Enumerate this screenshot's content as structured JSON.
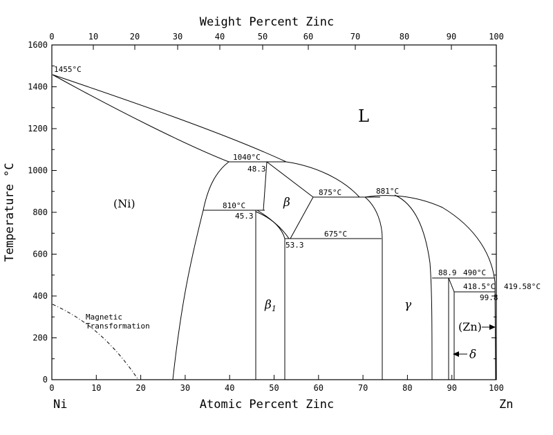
{
  "title_top": "Weight Percent Zinc",
  "title_bottom": "Atomic Percent Zinc",
  "ylabel": "Temperature °C",
  "left_element": "Ni",
  "right_element": "Zn",
  "y_ticks": [
    "0",
    "200",
    "400",
    "600",
    "800",
    "1000",
    "1200",
    "1400",
    "1600"
  ],
  "x_bottom_ticks": [
    "0",
    "10",
    "20",
    "30",
    "40",
    "50",
    "60",
    "70",
    "80",
    "90",
    "100"
  ],
  "x_top_ticks": [
    "0",
    "10",
    "20",
    "30",
    "40",
    "50",
    "60",
    "70",
    "80",
    "90",
    "100"
  ],
  "phases": {
    "liquid": "L",
    "ni": "(Ni)",
    "beta": "β",
    "beta1": "β",
    "beta1_sub": "1",
    "gamma": "γ",
    "zn": "(Zn)",
    "delta": "δ"
  },
  "labels": {
    "t_ni_melt": "1455°C",
    "t_1040": "1040°C",
    "c_48_3": "48.3",
    "t_810": "810°C",
    "c_45_3": "45.3",
    "t_875": "875°C",
    "t_881": "881°C",
    "t_675": "675°C",
    "c_53_3": "53.3",
    "c_88_9": "88.9",
    "t_490": "490°C",
    "t_418": "418.5°C",
    "t_zn_melt": "419.58°C",
    "c_99_8": "99.8",
    "magnetic_1": "Magnetic",
    "magnetic_2": "Transformation"
  }
}
